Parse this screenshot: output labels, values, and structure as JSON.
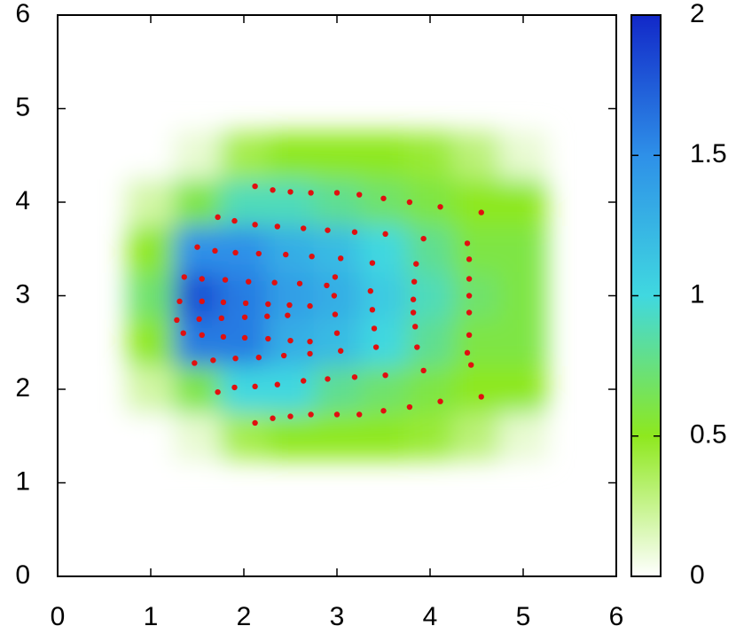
{
  "chart_data": {
    "type": "heatmap",
    "x": [
      1.0,
      1.5,
      2.0,
      2.5,
      3.0,
      3.5,
      4.0,
      4.5,
      5.0
    ],
    "y": [
      1.5,
      2.0,
      2.5,
      3.0,
      3.5,
      4.0,
      4.5
    ],
    "z": [
      [
        0.0,
        0.1,
        0.4,
        0.5,
        0.5,
        0.5,
        0.45,
        0.3,
        0.1
      ],
      [
        0.2,
        0.6,
        1.0,
        1.0,
        0.8,
        0.7,
        0.6,
        0.5,
        0.5
      ],
      [
        0.5,
        1.6,
        1.6,
        1.3,
        1.2,
        1.0,
        0.8,
        0.6,
        0.6
      ],
      [
        0.7,
        1.8,
        1.6,
        1.4,
        1.3,
        1.1,
        0.9,
        0.7,
        0.6
      ],
      [
        0.5,
        1.5,
        1.5,
        1.3,
        1.2,
        1.0,
        0.8,
        0.6,
        0.6
      ],
      [
        0.2,
        0.6,
        0.9,
        0.9,
        0.8,
        0.7,
        0.6,
        0.5,
        0.5
      ],
      [
        0.0,
        0.1,
        0.4,
        0.5,
        0.5,
        0.5,
        0.45,
        0.3,
        0.1
      ]
    ],
    "colormap": [
      "#ffffff",
      "#8ee81e",
      "#40d8e0",
      "#2e90e8",
      "#1228c8"
    ],
    "scatter": {
      "color": "#e01010",
      "x": [
        2.12,
        2.31,
        2.5,
        2.72,
        3.0,
        3.24,
        3.5,
        3.78,
        4.11,
        4.55,
        1.72,
        1.9,
        2.12,
        2.36,
        2.64,
        2.9,
        3.19,
        3.52,
        3.93,
        1.5,
        1.69,
        1.91,
        2.16,
        2.45,
        2.73,
        3.04,
        1.36,
        1.55,
        1.8,
        2.05,
        2.33,
        2.6,
        2.89,
        1.31,
        1.55,
        1.78,
        2.02,
        2.26,
        2.49,
        2.71,
        1.28,
        1.52,
        1.76,
        2.01,
        2.25,
        2.47,
        1.35,
        1.55,
        1.78,
        2.01,
        2.26,
        2.5,
        2.71,
        1.47,
        1.67,
        1.91,
        2.16,
        2.43,
        2.71,
        3.04,
        1.72,
        1.9,
        2.12,
        2.36,
        2.64,
        2.9,
        3.19,
        3.52,
        3.93,
        2.12,
        2.31,
        2.5,
        2.72,
        3.0,
        3.24,
        3.5,
        3.78,
        4.11,
        4.55,
        4.4,
        4.42,
        4.42,
        4.42,
        4.42,
        4.42,
        4.4,
        4.44,
        3.85,
        3.83,
        3.82,
        3.82,
        3.84,
        3.86,
        3.38,
        3.36,
        3.38,
        3.4,
        3.42,
        2.98,
        2.97,
        2.98,
        3.0
      ],
      "y": [
        4.17,
        4.13,
        4.11,
        4.1,
        4.1,
        4.08,
        4.04,
        4.0,
        3.95,
        3.89,
        3.84,
        3.8,
        3.76,
        3.74,
        3.72,
        3.7,
        3.68,
        3.66,
        3.61,
        3.52,
        3.48,
        3.46,
        3.45,
        3.44,
        3.42,
        3.4,
        3.2,
        3.18,
        3.17,
        3.15,
        3.14,
        3.13,
        3.11,
        2.94,
        2.94,
        2.93,
        2.92,
        2.91,
        2.9,
        2.89,
        2.74,
        2.75,
        2.76,
        2.77,
        2.78,
        2.79,
        2.6,
        2.58,
        2.56,
        2.55,
        2.54,
        2.52,
        2.51,
        2.28,
        2.31,
        2.33,
        2.34,
        2.36,
        2.38,
        2.41,
        1.97,
        2.02,
        2.03,
        2.05,
        2.09,
        2.11,
        2.13,
        2.15,
        2.2,
        1.64,
        1.69,
        1.71,
        1.73,
        1.73,
        1.73,
        1.77,
        1.81,
        1.87,
        1.92,
        3.56,
        3.39,
        3.18,
        3.0,
        2.82,
        2.58,
        2.39,
        2.26,
        3.34,
        3.15,
        2.96,
        2.82,
        2.67,
        2.45,
        3.35,
        3.05,
        2.85,
        2.65,
        2.45,
        3.2,
        3.0,
        2.8,
        2.6
      ]
    },
    "xlim": [
      0,
      6
    ],
    "ylim": [
      0,
      6
    ],
    "xticks": [
      0,
      1,
      2,
      3,
      4,
      5,
      6
    ],
    "yticks": [
      0,
      1,
      2,
      3,
      4,
      5,
      6
    ],
    "clim": [
      0,
      2
    ],
    "cticks": [
      0,
      0.5,
      1,
      1.5,
      2
    ]
  }
}
